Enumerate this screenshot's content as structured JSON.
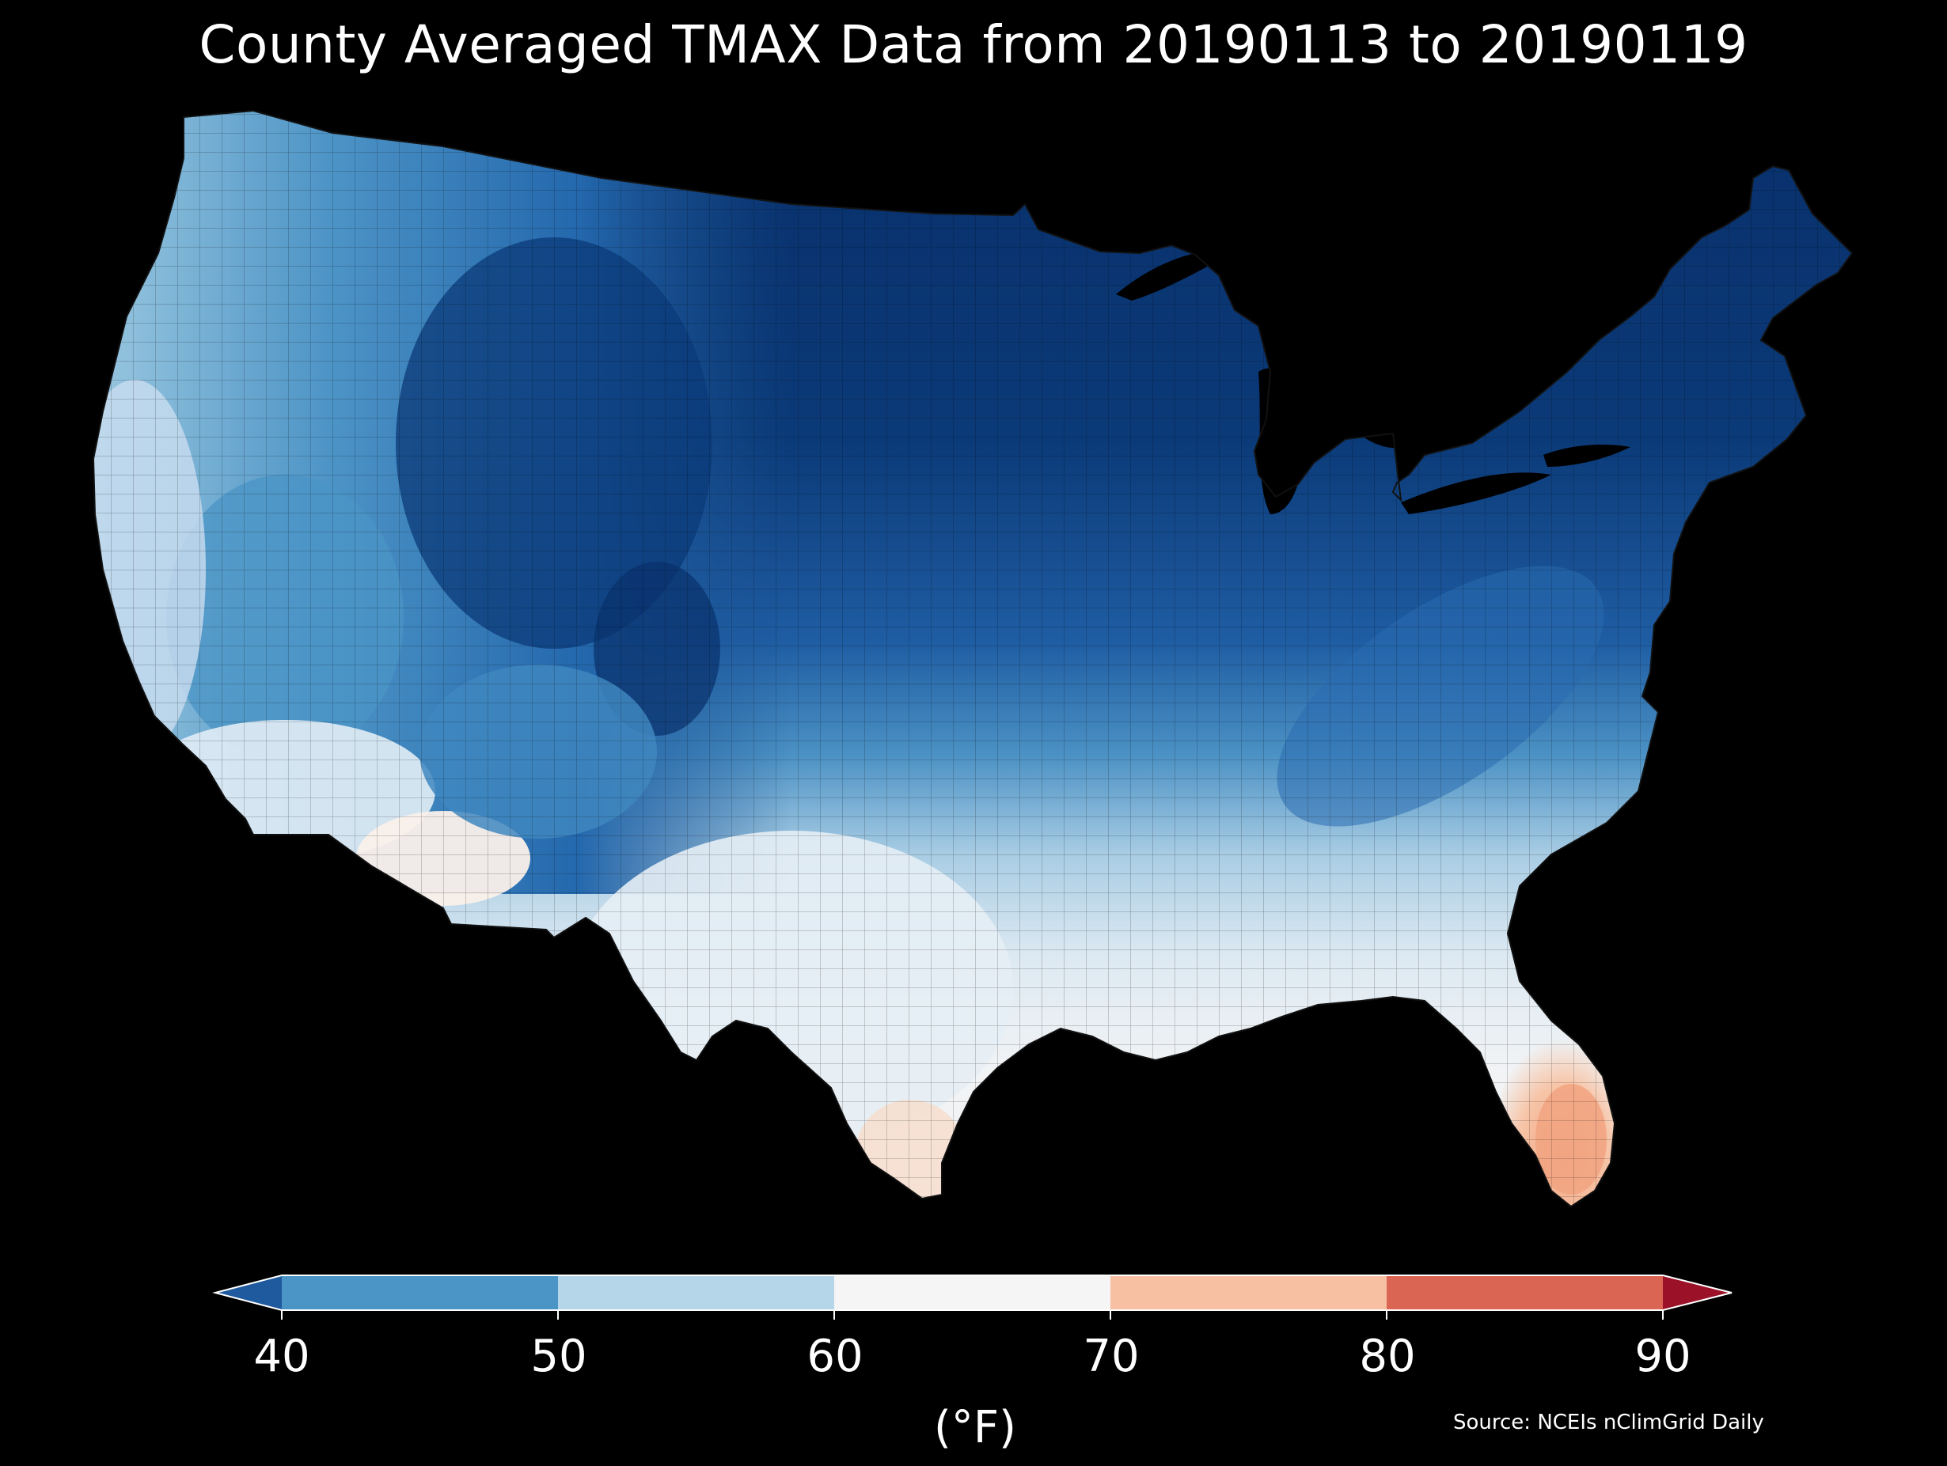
{
  "title": "County Averaged TMAX Data from 20190113 to 20190119",
  "colorbar": {
    "ticks": [
      "40",
      "50",
      "60",
      "70",
      "80",
      "90"
    ],
    "tick_values": [
      40,
      50,
      60,
      70,
      80,
      90
    ],
    "units_label": "(°F)",
    "extend": "both",
    "bins": [
      {
        "range": "<40",
        "color": "#1f5a9e"
      },
      {
        "range": "40-50",
        "color": "#4a94c6"
      },
      {
        "range": "50-60",
        "color": "#b4d6e8"
      },
      {
        "range": "60-70",
        "color": "#f5f5f5"
      },
      {
        "range": "70-80",
        "color": "#f8c0a3"
      },
      {
        "range": "80-90",
        "color": "#db6553"
      },
      {
        "range": ">90",
        "color": "#9b1228"
      }
    ]
  },
  "source": "Source: NCEIs nClimGrid Daily",
  "map": {
    "region": "Contiguous United States",
    "unit": "county",
    "variable": "TMAX",
    "background": "#000000",
    "coldest_color": "#08306b",
    "regions": [
      {
        "name": "northern-plains-great-lakes-northeast",
        "approx_tmax": "<30",
        "color": "#08306b"
      },
      {
        "name": "rockies-northwest-interior",
        "approx_tmax": "30-40",
        "color": "#2166ac"
      },
      {
        "name": "pacific-coast-great-basin",
        "approx_tmax": "40-55",
        "color": "#6baed6"
      },
      {
        "name": "southwest-desert",
        "approx_tmax": "60-70",
        "color": "#f7f2ee"
      },
      {
        "name": "southern-plains-gulf",
        "approx_tmax": "55-65",
        "color": "#e8f0f6"
      },
      {
        "name": "southeast-coast",
        "approx_tmax": "60-70",
        "color": "#eef3f7"
      },
      {
        "name": "south-florida",
        "approx_tmax": "70-80",
        "color": "#f3aa85"
      }
    ]
  }
}
